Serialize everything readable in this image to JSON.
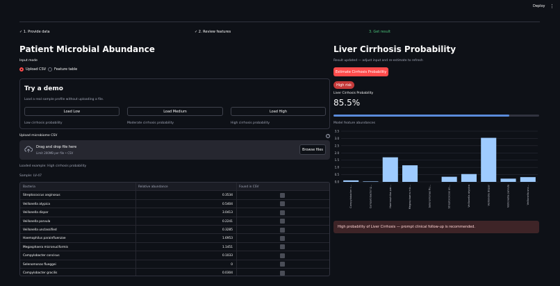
{
  "header": {
    "deploy_label": "Deploy",
    "menu_glyph": "⋮"
  },
  "steps": [
    {
      "label": "✓ 1. Provide data",
      "state": "done"
    },
    {
      "label": "✓ 2. Review features",
      "state": "done"
    },
    {
      "label": "3. Get result",
      "state": "active"
    }
  ],
  "left": {
    "title": "Patient Microbial Abundance",
    "input_mode_label": "Input mode",
    "input_modes": [
      {
        "label": "Upload CSV",
        "selected": true
      },
      {
        "label": "Feature table",
        "selected": false
      }
    ],
    "demo": {
      "title": "Try a demo",
      "subtitle": "Load a real sample profile without uploading a file.",
      "buttons": [
        {
          "label": "Load Low",
          "caption": "Low cirrhosis probability"
        },
        {
          "label": "Load Medium",
          "caption": "Moderate cirrhosis probability"
        },
        {
          "label": "Load High",
          "caption": "High cirrhosis probability"
        }
      ]
    },
    "upload": {
      "label": "Upload microbiome CSV",
      "help_glyph": "?",
      "drop_title": "Drag and drop file here",
      "drop_hint": "Limit 200MB per file • CSV",
      "browse_label": "Browse files"
    },
    "loaded_text": "Loaded example: High cirrhosis probability",
    "sample_text": "Sample: LV-47",
    "table": {
      "columns": [
        "Bacteria",
        "Relative abundance",
        "Found in CSV"
      ],
      "rows": [
        {
          "bacteria": "Streptococcus anginosus",
          "abundance": "0.3534"
        },
        {
          "bacteria": "Veillonella atypica",
          "abundance": "0.5404"
        },
        {
          "bacteria": "Veillonella dispar",
          "abundance": "3.0413"
        },
        {
          "bacteria": "Veillonella parvula",
          "abundance": "0.2241"
        },
        {
          "bacteria": "Veillonella unclassified",
          "abundance": "0.3285"
        },
        {
          "bacteria": "Haemophilus parainfluenzae",
          "abundance": "1.6953"
        },
        {
          "bacteria": "Megasphaera micronuciformis",
          "abundance": "1.1451"
        },
        {
          "bacteria": "Campylobacter concisus",
          "abundance": "0.1033"
        },
        {
          "bacteria": "Selenomonas flueggei",
          "abundance": "0"
        },
        {
          "bacteria": "Campylobacter gracilis",
          "abundance": "0.0304"
        }
      ]
    }
  },
  "right": {
    "title": "Liver Cirrhosis Probability",
    "status_text": "Result updated — adjust input and re-estimate to refresh",
    "estimate_label": "Estimate Cirrhosis Probability",
    "risk_badge": "High risk",
    "metric_label": "Liver Cirrhosis Probability",
    "metric_value": "85.5%",
    "progress": 0.855,
    "chart_caption": "Model feature abundances",
    "alert_text": "High probability of Liver Cirrhosis — prompt clinical follow-up is recommended."
  },
  "chart_data": {
    "type": "bar",
    "categories": [
      "Campylobacter c...",
      "Campylobacter g...",
      "Haemophilus par...",
      "Megasphaera mic...",
      "Selenomonas flu...",
      "Streptococcus an...",
      "Veillonella atypica",
      "Veillonella dispar",
      "Veillonella parvula",
      "Veillonella unc..."
    ],
    "values": [
      0.1033,
      0.0304,
      1.6953,
      1.1451,
      0,
      0.3534,
      0.5404,
      3.0413,
      0.2241,
      0.3285
    ],
    "yticks": [
      "0.0",
      "0.5",
      "1.0",
      "1.5",
      "2.0",
      "2.5",
      "3.0",
      "3.5"
    ],
    "ylim": [
      0,
      3.5
    ],
    "color": "#9ecbff"
  },
  "colors": {
    "accent": "#ff4b4b",
    "success": "#4ac27a",
    "progress": "#5b8bdb"
  }
}
